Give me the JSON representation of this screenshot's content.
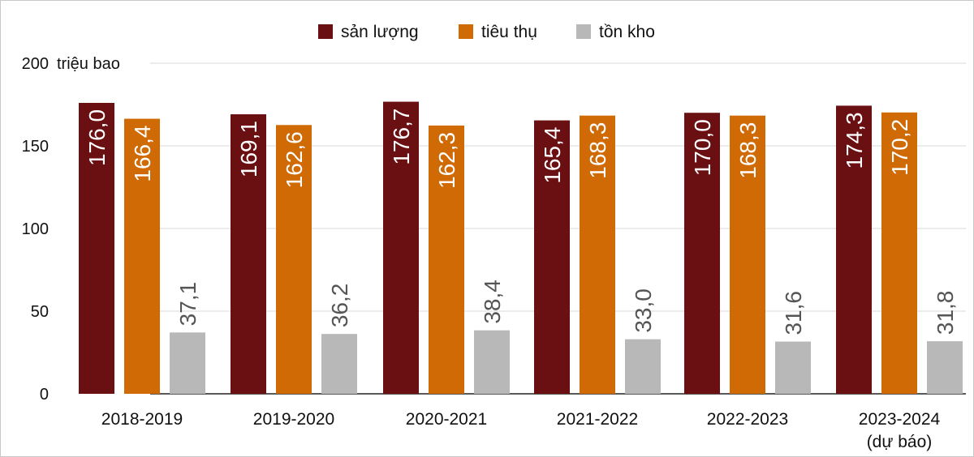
{
  "chart_data": {
    "type": "bar",
    "ylabel": "triệu bao",
    "ylim": [
      0,
      200
    ],
    "yticks": [
      "0",
      "50",
      "100",
      "150",
      "200"
    ],
    "categories": [
      [
        "2018-2019"
      ],
      [
        "2019-2020"
      ],
      [
        "2020-2021"
      ],
      [
        "2021-2022"
      ],
      [
        "2022-2023"
      ],
      [
        "2023-2024",
        "(dự báo)"
      ]
    ],
    "series": [
      {
        "name": "sản lượng",
        "color": "#6b1012",
        "label_color": "#ffffff",
        "values": [
          176.0,
          169.1,
          176.7,
          165.4,
          170.0,
          174.3
        ],
        "labels": [
          "176,0",
          "169,1",
          "176,7",
          "165,4",
          "170,0",
          "174,3"
        ]
      },
      {
        "name": "tiêu thụ",
        "color": "#d06a05",
        "label_color": "#ffffff",
        "values": [
          166.4,
          162.6,
          162.3,
          168.3,
          168.3,
          170.2
        ],
        "labels": [
          "166,4",
          "162,6",
          "162,3",
          "168,3",
          "168,3",
          "170,2"
        ]
      },
      {
        "name": "tồn kho",
        "color": "#b8b8b8",
        "label_color": "#555555",
        "values": [
          37.1,
          36.2,
          38.4,
          33.0,
          31.6,
          31.8
        ],
        "labels": [
          "37,1",
          "36,2",
          "38,4",
          "33,0",
          "31,6",
          "31,8"
        ]
      }
    ],
    "legend": "top-center",
    "grid": true
  }
}
